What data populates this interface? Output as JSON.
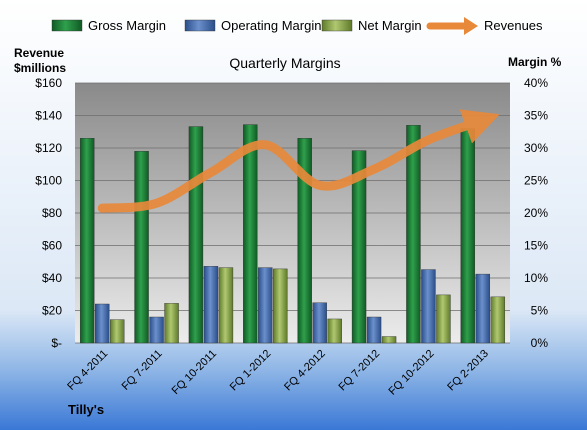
{
  "chart_data": {
    "type": "bar",
    "title": "Quarterly Margins",
    "company": "Tilly's",
    "left_axis_label": [
      "Revenue",
      "$millions"
    ],
    "right_axis_label": "Margin %",
    "categories": [
      "FQ 4-2011",
      "FQ 7-2011",
      "FQ 10-2011",
      "FQ 1-2012",
      "FQ 4-2012",
      "FQ 7-2012",
      "FQ 10-2012",
      "FQ 2-2013"
    ],
    "series": [
      {
        "name": "Gross Margin",
        "kind": "bar",
        "axis": "right",
        "color": "#1E8A3C",
        "values": [
          31.5,
          29.5,
          33.3,
          33.6,
          31.5,
          29.6,
          33.5,
          33.0
        ]
      },
      {
        "name": "Operating Margin",
        "kind": "bar",
        "axis": "right",
        "color": "#4A72B0",
        "values": [
          6.0,
          4.0,
          11.8,
          11.6,
          6.2,
          4.0,
          11.3,
          10.6
        ]
      },
      {
        "name": "Net Margin",
        "kind": "bar",
        "axis": "right",
        "color": "#8FAE4A",
        "values": [
          3.6,
          6.1,
          11.6,
          11.4,
          3.7,
          1.0,
          7.4,
          7.1
        ]
      },
      {
        "name": "Revenues",
        "kind": "line",
        "axis": "left",
        "color": "#E8893A",
        "values": [
          83,
          86,
          105,
          122,
          97,
          107,
          125,
          137
        ]
      }
    ],
    "left_axis": {
      "min": 0,
      "max": 160,
      "step": 20,
      "tick_labels": [
        "$-",
        "$20",
        "$40",
        "$60",
        "$80",
        "$100",
        "$120",
        "$140",
        "$160"
      ]
    },
    "right_axis": {
      "min": 0,
      "max": 40,
      "step": 5,
      "tick_labels": [
        "0%",
        "5%",
        "10%",
        "15%",
        "20%",
        "25%",
        "30%",
        "35%",
        "40%"
      ]
    },
    "grid": true,
    "legend": "top"
  }
}
